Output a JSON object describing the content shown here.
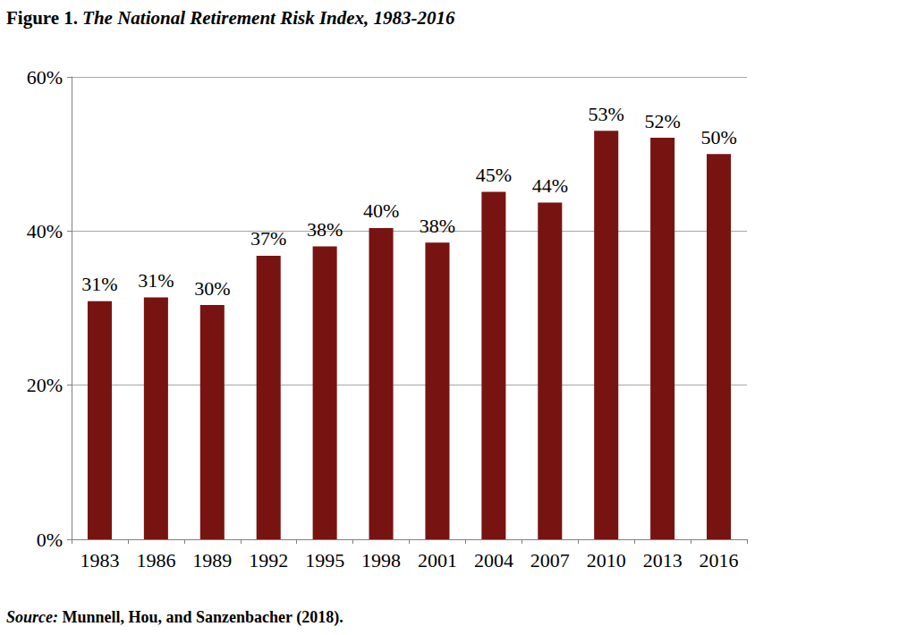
{
  "chart_data": {
    "type": "bar",
    "title": "Figure 1. The National Retirement Risk Index, 1983-2016",
    "annotations": [
      "Source: Munnell, Hou, and Sanzenbacher (2018)."
    ],
    "categories": [
      "1983",
      "1986",
      "1989",
      "1992",
      "1995",
      "1998",
      "2001",
      "2004",
      "2007",
      "2010",
      "2013",
      "2016"
    ],
    "values": [
      30.9,
      31.4,
      30.4,
      36.8,
      38.0,
      40.4,
      38.5,
      45.1,
      43.7,
      53.0,
      52.1,
      50.0
    ],
    "value_labels": [
      "31%",
      "31%",
      "30%",
      "37%",
      "38%",
      "40%",
      "38%",
      "45%",
      "44%",
      "53%",
      "52%",
      "50%"
    ],
    "color": "#771411",
    "ylim": [
      0,
      60
    ],
    "yticks": [
      {
        "value": 0,
        "label": "0%"
      },
      {
        "value": 20,
        "label": "20%"
      },
      {
        "value": 40,
        "label": "40%"
      },
      {
        "value": 60,
        "label": "60%"
      }
    ],
    "grid": true,
    "data_labels": true
  }
}
